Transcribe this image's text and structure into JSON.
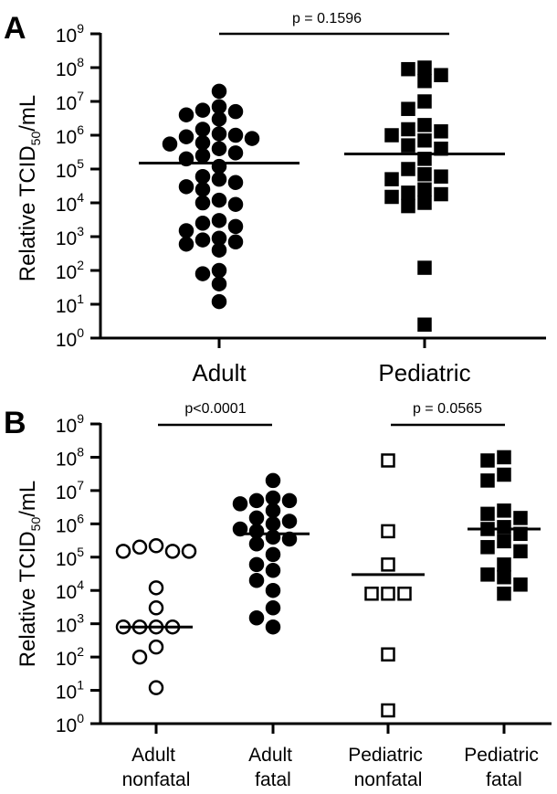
{
  "chart_data": [
    {
      "panel_label": "A",
      "type": "scatter",
      "ylabel": {
        "main": "Relative TCID",
        "sub": "50",
        "suffix": "/mL"
      },
      "yscale": "log",
      "ylim": [
        1,
        1000000000
      ],
      "ytick_labels": [
        {
          "base": "10",
          "exp": "0"
        },
        {
          "base": "10",
          "exp": "1"
        },
        {
          "base": "10",
          "exp": "2"
        },
        {
          "base": "10",
          "exp": "3"
        },
        {
          "base": "10",
          "exp": "4"
        },
        {
          "base": "10",
          "exp": "5"
        },
        {
          "base": "10",
          "exp": "6"
        },
        {
          "base": "10",
          "exp": "7"
        },
        {
          "base": "10",
          "exp": "8"
        },
        {
          "base": "10",
          "exp": "9"
        }
      ],
      "grid": false,
      "categories": [
        "Adult",
        "Pediatric"
      ],
      "series": [
        {
          "marker": "filled-circle",
          "median": 150000,
          "values": [
            20000000,
            7000000,
            5500000,
            5000000,
            4000000,
            3000000,
            1500000,
            1100000,
            1000000,
            900000,
            800000,
            600000,
            550000,
            400000,
            300000,
            250000,
            200000,
            120000,
            60000,
            50000,
            40000,
            30000,
            25000,
            12000,
            10000,
            9000,
            3000,
            2500,
            2000,
            1500,
            900,
            800,
            700,
            600,
            400,
            100,
            80,
            40,
            12
          ]
        },
        {
          "marker": "filled-square",
          "median": 280000,
          "values": [
            100000000,
            90000000,
            60000000,
            40000000,
            10000000,
            6000000,
            2000000,
            1500000,
            1300000,
            1000000,
            700000,
            500000,
            400000,
            200000,
            100000,
            70000,
            60000,
            50000,
            25000,
            20000,
            18000,
            15000,
            10000,
            8000,
            120,
            2.5
          ]
        }
      ],
      "annotations": [
        {
          "text": "p = 0.1596",
          "between": [
            "Adult",
            "Pediatric"
          ]
        }
      ]
    },
    {
      "panel_label": "B",
      "type": "scatter",
      "ylabel": {
        "main": "Relative TCID",
        "sub": "50",
        "suffix": "/mL"
      },
      "yscale": "log",
      "ylim": [
        1,
        1000000000
      ],
      "ytick_labels": [
        {
          "base": "10",
          "exp": "0"
        },
        {
          "base": "10",
          "exp": "1"
        },
        {
          "base": "10",
          "exp": "2"
        },
        {
          "base": "10",
          "exp": "3"
        },
        {
          "base": "10",
          "exp": "4"
        },
        {
          "base": "10",
          "exp": "5"
        },
        {
          "base": "10",
          "exp": "6"
        },
        {
          "base": "10",
          "exp": "7"
        },
        {
          "base": "10",
          "exp": "8"
        },
        {
          "base": "10",
          "exp": "9"
        }
      ],
      "grid": false,
      "categories": [
        {
          "line1": "Adult",
          "line2": "nonfatal"
        },
        {
          "line1": "Adult",
          "line2": "fatal"
        },
        {
          "line1": "Pediatric",
          "line2": "nonfatal"
        },
        {
          "line1": "Pediatric",
          "line2": "fatal"
        }
      ],
      "series": [
        {
          "marker": "open-circle",
          "median": 800,
          "values": [
            220000,
            200000,
            150000,
            150000,
            150000,
            12000,
            3000,
            800,
            800,
            800,
            800,
            200,
            100,
            12
          ]
        },
        {
          "marker": "filled-circle",
          "median": 500000,
          "values": [
            20000000,
            6000000,
            5000000,
            5000000,
            4000000,
            2500000,
            1500000,
            1200000,
            1000000,
            700000,
            600000,
            400000,
            350000,
            250000,
            120000,
            60000,
            40000,
            20000,
            10000,
            3000,
            1500,
            800
          ]
        },
        {
          "marker": "open-square",
          "median": 30000,
          "values": [
            80000000,
            600000,
            60000,
            8000,
            8000,
            8000,
            120,
            2.5
          ]
        },
        {
          "marker": "filled-square",
          "median": 700000,
          "values": [
            100000000,
            80000000,
            30000000,
            20000000,
            2500000,
            2000000,
            1500000,
            800000,
            700000,
            500000,
            300000,
            200000,
            150000,
            60000,
            30000,
            25000,
            15000,
            8000
          ]
        }
      ],
      "annotations": [
        {
          "text": "p<0.0001",
          "between": [
            "Adult nonfatal",
            "Adult fatal"
          ]
        },
        {
          "text": "p = 0.0565",
          "between": [
            "Pediatric nonfatal",
            "Pediatric fatal"
          ]
        }
      ]
    }
  ]
}
